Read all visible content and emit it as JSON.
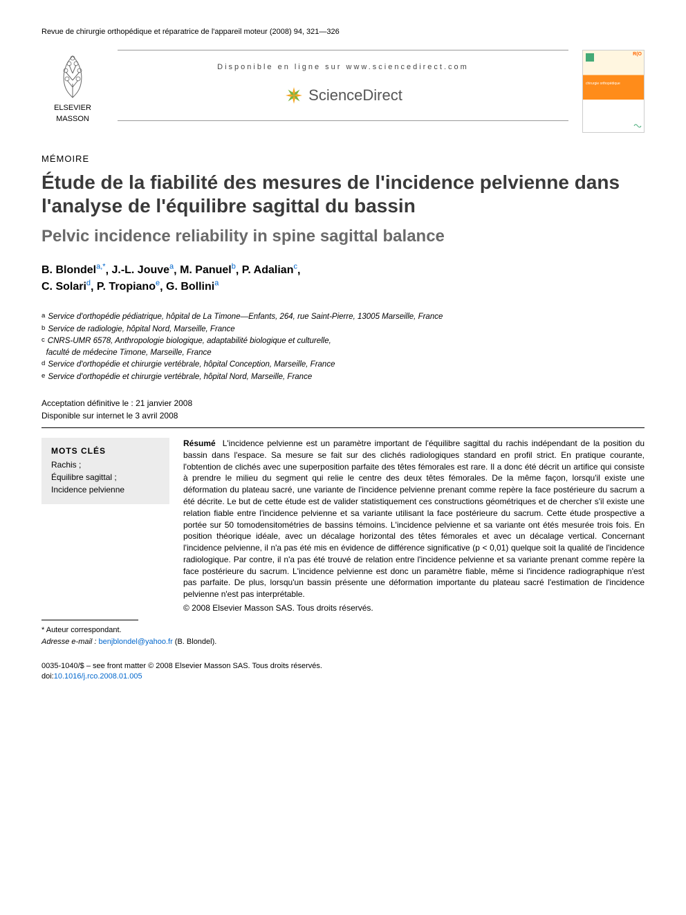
{
  "citation": "Revue de chirurgie orthopédique et réparatrice de l'appareil moteur (2008) 94, 321—326",
  "banner": {
    "logo_line1": "ELSEVIER",
    "logo_line2": "MASSON",
    "availability": "Disponible en ligne sur www.sciencedirect.com",
    "sd_name": "ScienceDirect",
    "cover_label": "R(O",
    "cover_sub": "chirurgie orthopédique"
  },
  "section_label": "MÉMOIRE",
  "title_fr": "Étude de la fiabilité des mesures de l'incidence pelvienne dans l'analyse de l'équilibre sagittal du bassin",
  "title_en": "Pelvic incidence reliability in spine sagittal balance",
  "authors_html": [
    {
      "name": "B. Blondel",
      "sup": "a,*"
    },
    {
      "name": "J.-L. Jouve",
      "sup": "a"
    },
    {
      "name": "M. Panuel",
      "sup": "b"
    },
    {
      "name": "P. Adalian",
      "sup": "c"
    },
    {
      "name": "C. Solari",
      "sup": "d"
    },
    {
      "name": "P. Tropiano",
      "sup": "e"
    },
    {
      "name": "G. Bollini",
      "sup": "a"
    }
  ],
  "affiliations": [
    {
      "sup": "a",
      "text": "Service d'orthopédie pédiatrique, hôpital de La Timone—Enfants, 264, rue Saint-Pierre, 13005 Marseille, France"
    },
    {
      "sup": "b",
      "text": "Service de radiologie, hôpital Nord, Marseille, France"
    },
    {
      "sup": "c",
      "text": "CNRS-UMR 6578, Anthropologie biologique, adaptabilité biologique et culturelle,"
    },
    {
      "sup": "",
      "text": "faculté de médecine Timone, Marseille, France"
    },
    {
      "sup": "d",
      "text": "Service d'orthopédie et chirurgie vertébrale, hôpital Conception, Marseille, France"
    },
    {
      "sup": "e",
      "text": "Service d'orthopédie et chirurgie vertébrale, hôpital Nord, Marseille, France"
    }
  ],
  "dates": {
    "accepted": "Acceptation définitive le : 21 janvier 2008",
    "online": "Disponible sur internet le 3 avril 2008"
  },
  "keywords": {
    "title": "MOTS CLÉS",
    "items": [
      "Rachis ;",
      "Équilibre sagittal ;",
      "Incidence pelvienne"
    ]
  },
  "abstract": {
    "lead": "Résumé",
    "body": "L'incidence pelvienne est un paramètre important de l'équilibre sagittal du rachis indépendant de la position du bassin dans l'espace. Sa mesure se fait sur des clichés radiologiques standard en profil strict. En pratique courante, l'obtention de clichés avec une superposition parfaite des têtes fémorales est rare. Il a donc été décrit un artifice qui consiste à prendre le milieu du segment qui relie le centre des deux têtes fémorales. De la même façon, lorsqu'il existe une déformation du plateau sacré, une variante de l'incidence pelvienne prenant comme repère la face postérieure du sacrum a été décrite. Le but de cette étude est de valider statistiquement ces constructions géométriques et de chercher s'il existe une relation fiable entre l'incidence pelvienne et sa variante utilisant la face postérieure du sacrum. Cette étude prospective a portée sur 50 tomodensitométries de bassins témoins. L'incidence pelvienne et sa variante ont étés mesurée trois fois. En position théorique idéale, avec un décalage horizontal des têtes fémorales et avec un décalage vertical. Concernant l'incidence pelvienne, il n'a pas été mis en évidence de différence significative (p < 0,01) quelque soit la qualité de l'incidence radiologique. Par contre, il n'a pas été trouvé de relation entre l'incidence pelvienne et sa variante prenant comme repère la face postérieure du sacrum. L'incidence pelvienne est donc un paramètre fiable, même si l'incidence radiographique n'est pas parfaite. De plus, lorsqu'un bassin présente une déformation importante du plateau sacré l'estimation de l'incidence pelvienne n'est pas interprétable.",
    "copyright": "© 2008 Elsevier Masson SAS. Tous droits réservés."
  },
  "footnote": {
    "star": "* Auteur correspondant.",
    "email_label": "Adresse e-mail :",
    "email": "benjblondel@yahoo.fr",
    "email_author": "(B. Blondel)."
  },
  "footer": {
    "line1": "0035-1040/$ – see front matter © 2008 Elsevier Masson SAS. Tous droits réservés.",
    "doi_label": "doi:",
    "doi": "10.1016/j.rco.2008.01.005"
  },
  "colors": {
    "link": "#0066cc",
    "title_gray": "#3a3a3a",
    "subtitle_gray": "#6a6a6a",
    "kw_bg": "#ececec"
  }
}
